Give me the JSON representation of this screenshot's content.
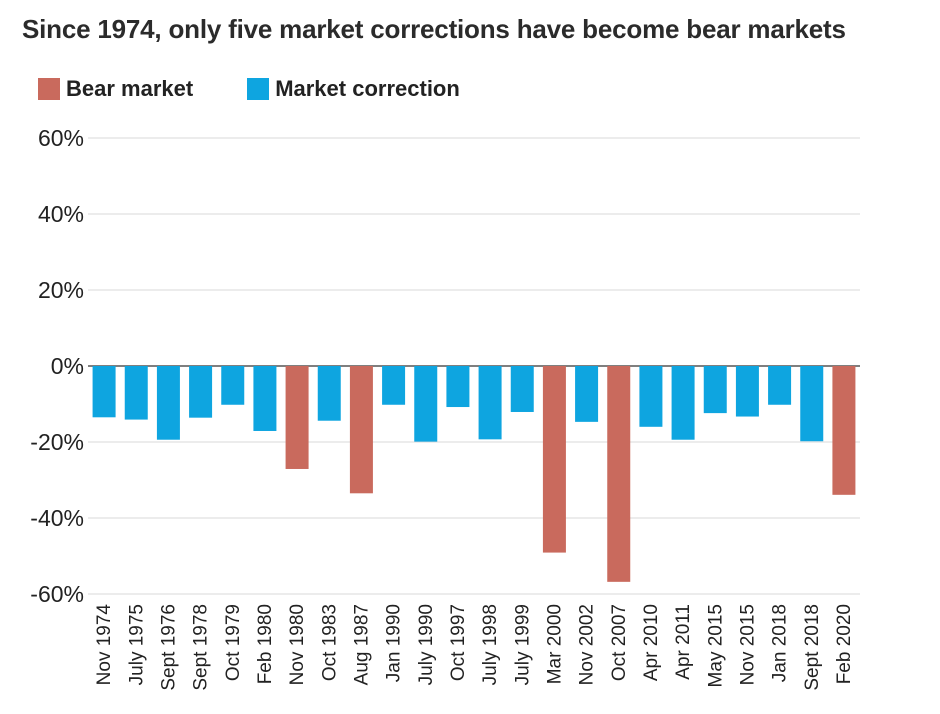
{
  "header": {
    "title": "Since 1974, only five market corrections have become bear markets"
  },
  "legend": {
    "items": [
      {
        "label": "Bear market",
        "color": "#c96a5d"
      },
      {
        "label": "Market correction",
        "color": "#0ea5e0"
      }
    ]
  },
  "chart_data": {
    "type": "bar",
    "title": "Since 1974, only five market corrections have become bear markets",
    "xlabel": "",
    "ylabel": "",
    "ylim": [
      -60,
      60
    ],
    "yticks": [
      60,
      40,
      20,
      0,
      -20,
      -40,
      -60
    ],
    "ytick_labels": [
      "60%",
      "40%",
      "20%",
      "0%",
      "-20%",
      "-40%",
      "-60%"
    ],
    "grid": true,
    "legend_position": "top-left",
    "categories": [
      "Nov 1974",
      "July 1975",
      "Sept 1976",
      "Sept 1978",
      "Oct 1979",
      "Feb 1980",
      "Nov 1980",
      "Oct 1983",
      "Aug 1987",
      "Jan 1990",
      "July 1990",
      "Oct 1997",
      "July 1998",
      "July 1999",
      "Mar 2000",
      "Nov 2002",
      "Oct 2007",
      "Apr 2010",
      "Apr 2011",
      "May 2015",
      "Nov 2015",
      "Jan 2018",
      "Sept 2018",
      "Feb 2020"
    ],
    "values": [
      -13.5,
      -14.1,
      -19.4,
      -13.6,
      -10.2,
      -17.1,
      -27.1,
      -14.4,
      -33.5,
      -10.2,
      -19.9,
      -10.8,
      -19.3,
      -12.1,
      -49.1,
      -14.7,
      -56.8,
      -16.0,
      -19.4,
      -12.4,
      -13.3,
      -10.2,
      -19.8,
      -33.9
    ],
    "series": [
      {
        "name": "Bear market",
        "color": "#c96a5d"
      },
      {
        "name": "Market correction",
        "color": "#0ea5e0"
      }
    ],
    "bar_type": [
      "Market correction",
      "Market correction",
      "Market correction",
      "Market correction",
      "Market correction",
      "Market correction",
      "Bear market",
      "Market correction",
      "Bear market",
      "Market correction",
      "Market correction",
      "Market correction",
      "Market correction",
      "Market correction",
      "Bear market",
      "Market correction",
      "Bear market",
      "Market correction",
      "Market correction",
      "Market correction",
      "Market correction",
      "Market correction",
      "Market correction",
      "Bear market"
    ]
  }
}
